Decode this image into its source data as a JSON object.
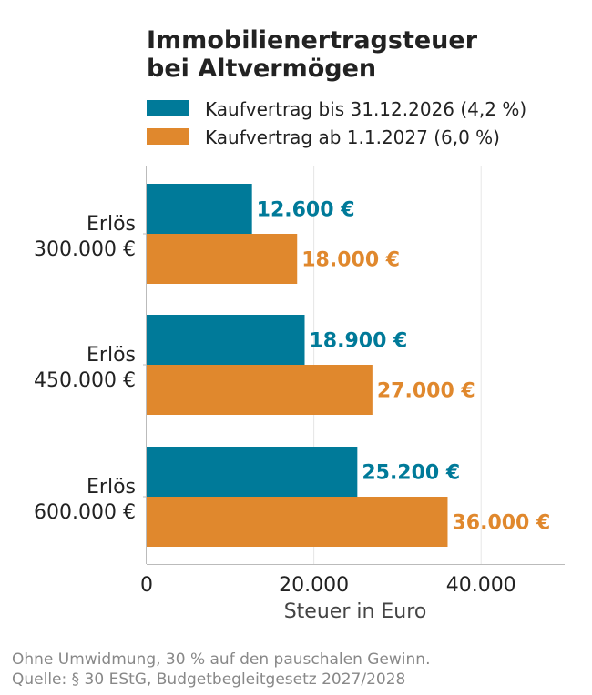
{
  "chart_data": {
    "type": "bar",
    "orientation": "horizontal",
    "title": [
      "Immobilienertragsteuer",
      "bei Altvermögen"
    ],
    "categories": [
      [
        "Erlös",
        "300.000 €"
      ],
      [
        "Erlös",
        "450.000 €"
      ],
      [
        "Erlös",
        "600.000 €"
      ]
    ],
    "series": [
      {
        "name": "Kaufvertrag bis 31.12.2026 (4,2 %)",
        "color": "#007a99",
        "values": [
          12600,
          18900,
          25200
        ],
        "labels": [
          "12.600 €",
          "18.900 €",
          "25.200 €"
        ]
      },
      {
        "name": "Kaufvertrag ab 1.1.2027 (6,0 %)",
        "color": "#e0882d",
        "values": [
          18000,
          27000,
          36000
        ],
        "labels": [
          "18.000 €",
          "27.000 €",
          "36.000 €"
        ]
      }
    ],
    "xlabel": "Steuer in Euro",
    "xlim": [
      0,
      50000
    ],
    "xticks": [
      0,
      20000,
      40000
    ],
    "xtick_labels": [
      "0",
      "20.000",
      "40.000"
    ],
    "grid": "vertical",
    "legend_position": "top"
  },
  "footer": {
    "note": "Ohne Umwidmung, 30 % auf den pauschalen Gewinn.",
    "source": "Quelle: § 30 EStG, Budgetbegleitgesetz 2027/2028"
  }
}
